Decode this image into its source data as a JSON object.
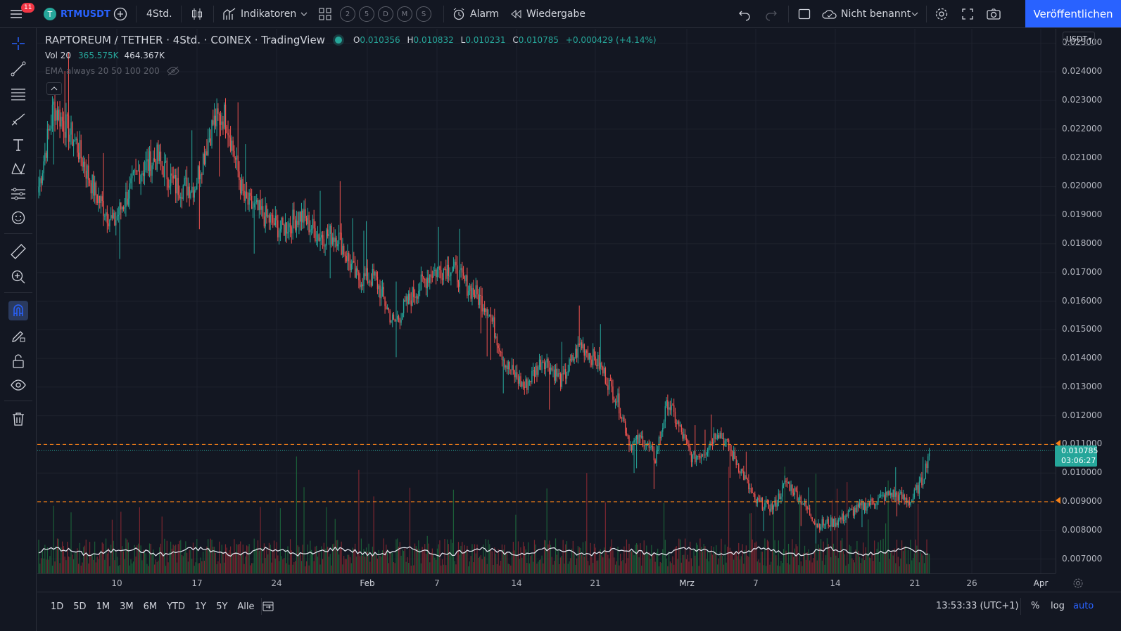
{
  "toolbar": {
    "notification_count": "11",
    "symbol": "RTMUSDT",
    "interval": "4Std.",
    "indicators_label": "Indikatoren",
    "quick_intervals": [
      "2",
      "5",
      "D",
      "M",
      "S"
    ],
    "alarm_label": "Alarm",
    "replay_label": "Wiedergabe",
    "layout_name": "Nicht benannt",
    "publish_label": "Veröffentlichen"
  },
  "legend": {
    "title": "RAPTOREUM / TETHER · 4Std. · COINEX · TradingView",
    "open_key": "O",
    "open": "0.010356",
    "high_key": "H",
    "high": "0.010832",
    "low_key": "L",
    "low": "0.010231",
    "close_key": "C",
    "close": "0.010785",
    "change": "+0.000429 (+4.14%)",
    "vol_label": "Vol 20",
    "vol_value1": "365.575K",
    "vol_value2": "464.367K",
    "ema_label": "EMA always 20 50 100 200"
  },
  "price_axis": {
    "currency": "USDT",
    "labels": [
      "0.025000",
      "0.024000",
      "0.023000",
      "0.022000",
      "0.021000",
      "0.020000",
      "0.019000",
      "0.018000",
      "0.017000",
      "0.016000",
      "0.015000",
      "0.014000",
      "0.013000",
      "0.012000",
      "0.011000",
      "0.010000",
      "0.009000",
      "0.008000",
      "0.007000"
    ],
    "current_price": "0.010785",
    "countdown": "03:06:27"
  },
  "time_axis": {
    "labels": [
      "10",
      "17",
      "24",
      "Feb",
      "7",
      "14",
      "21",
      "Mrz",
      "7",
      "14",
      "21",
      "26",
      "Apr"
    ]
  },
  "bottom": {
    "ranges": [
      "1D",
      "5D",
      "1M",
      "3M",
      "6M",
      "YTD",
      "1Y",
      "5Y",
      "Alle"
    ],
    "clock": "13:53:33 (UTC+1)",
    "percent": "%",
    "log": "log",
    "auto": "auto"
  },
  "colors": {
    "up": "#26a69a",
    "down": "#ef5350",
    "accent": "#2962ff",
    "hline": "#f57f17"
  },
  "chart_data": {
    "type": "candlestick",
    "title": "RAPTOREUM / TETHER · 4Std. · COINEX",
    "ylim": [
      0.0065,
      0.0255
    ],
    "hlines": [
      0.011,
      0.009
    ],
    "anchors": [
      [
        0,
        0.02
      ],
      [
        12,
        0.0228
      ],
      [
        30,
        0.0215
      ],
      [
        45,
        0.0198
      ],
      [
        60,
        0.0187
      ],
      [
        80,
        0.0205
      ],
      [
        95,
        0.021
      ],
      [
        110,
        0.02
      ],
      [
        125,
        0.02
      ],
      [
        140,
        0.0222
      ],
      [
        150,
        0.0225
      ],
      [
        165,
        0.0195
      ],
      [
        180,
        0.019
      ],
      [
        195,
        0.0185
      ],
      [
        210,
        0.019
      ],
      [
        225,
        0.0183
      ],
      [
        240,
        0.0183
      ],
      [
        255,
        0.0168
      ],
      [
        270,
        0.0168
      ],
      [
        285,
        0.0152
      ],
      [
        300,
        0.0162
      ],
      [
        315,
        0.017
      ],
      [
        330,
        0.0172
      ],
      [
        345,
        0.0165
      ],
      [
        360,
        0.0158
      ],
      [
        375,
        0.0138
      ],
      [
        390,
        0.013
      ],
      [
        405,
        0.014
      ],
      [
        420,
        0.0132
      ],
      [
        435,
        0.0145
      ],
      [
        450,
        0.0138
      ],
      [
        465,
        0.0125
      ],
      [
        475,
        0.011
      ],
      [
        485,
        0.0112
      ],
      [
        495,
        0.0105
      ],
      [
        505,
        0.0125
      ],
      [
        515,
        0.0115
      ],
      [
        525,
        0.0105
      ],
      [
        535,
        0.0108
      ],
      [
        545,
        0.0115
      ],
      [
        555,
        0.0108
      ],
      [
        565,
        0.01
      ],
      [
        575,
        0.009
      ],
      [
        590,
        0.0088
      ],
      [
        600,
        0.0097
      ],
      [
        610,
        0.0092
      ],
      [
        625,
        0.0082
      ],
      [
        640,
        0.0083
      ],
      [
        655,
        0.0087
      ],
      [
        670,
        0.009
      ],
      [
        685,
        0.0093
      ],
      [
        700,
        0.009
      ],
      [
        710,
        0.0098
      ],
      [
        715,
        0.0108
      ]
    ]
  }
}
